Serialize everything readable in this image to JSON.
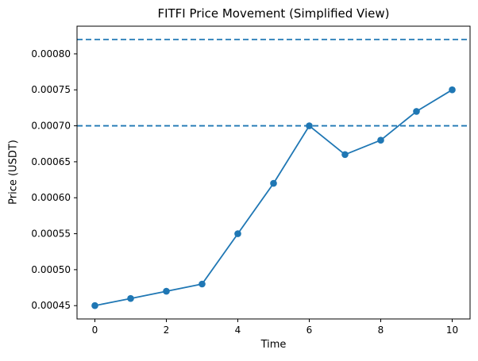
{
  "figure": {
    "background": "#ffffff",
    "accent_color": "#1f77b4",
    "spine_color": "#000000",
    "text_color": "#000000"
  },
  "chart_data": {
    "type": "line",
    "title": "FITFI Price Movement (Simplified View)",
    "xlabel": "Time",
    "ylabel": "Price (USDT)",
    "x": [
      0,
      1,
      2,
      3,
      4,
      5,
      6,
      7,
      8,
      9,
      10
    ],
    "series": [
      {
        "values": [
          0.00045,
          0.00046,
          0.00047,
          0.00048,
          0.00055,
          0.00062,
          0.0007,
          0.00066,
          0.00068,
          0.00072,
          0.00075
        ],
        "color": "#1f77b4",
        "marker": "circle",
        "style": "solid"
      }
    ],
    "hlines": [
      {
        "y": 0.00082,
        "color": "#1f77b4",
        "style": "dashed"
      },
      {
        "y": 0.0007,
        "color": "#1f77b4",
        "style": "dashed"
      }
    ],
    "xticks": [
      0,
      2,
      4,
      6,
      8,
      10
    ],
    "xtick_labels": [
      "0",
      "2",
      "4",
      "6",
      "8",
      "10"
    ],
    "yticks": [
      0.00045,
      0.0005,
      0.00055,
      0.0006,
      0.00065,
      0.0007,
      0.00075,
      0.0008
    ],
    "ytick_labels": [
      "0.00045",
      "0.00050",
      "0.00055",
      "0.00060",
      "0.00065",
      "0.00070",
      "0.00075",
      "0.00080"
    ],
    "xlim": [
      -0.5,
      10.5
    ],
    "ylim": [
      0.0004315,
      0.0008385
    ],
    "grid": false,
    "legend": null
  }
}
